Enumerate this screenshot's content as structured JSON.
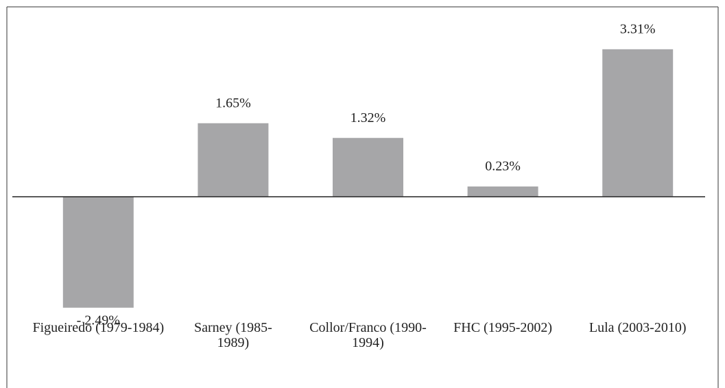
{
  "chart_data": {
    "type": "bar",
    "categories": [
      "Figueiredo (1979-1984)",
      "Sarney (1985-1989)",
      "Collor/Franco (1990-1994)",
      "FHC (1995-2002)",
      "Lula (2003-2010)"
    ],
    "values": [
      -2.49,
      1.65,
      1.32,
      0.23,
      3.31
    ],
    "value_labels": [
      "- 2.49%",
      "1.65%",
      "1.32%",
      "0.23%",
      "3.31%"
    ],
    "color": "#a6a6a8"
  }
}
